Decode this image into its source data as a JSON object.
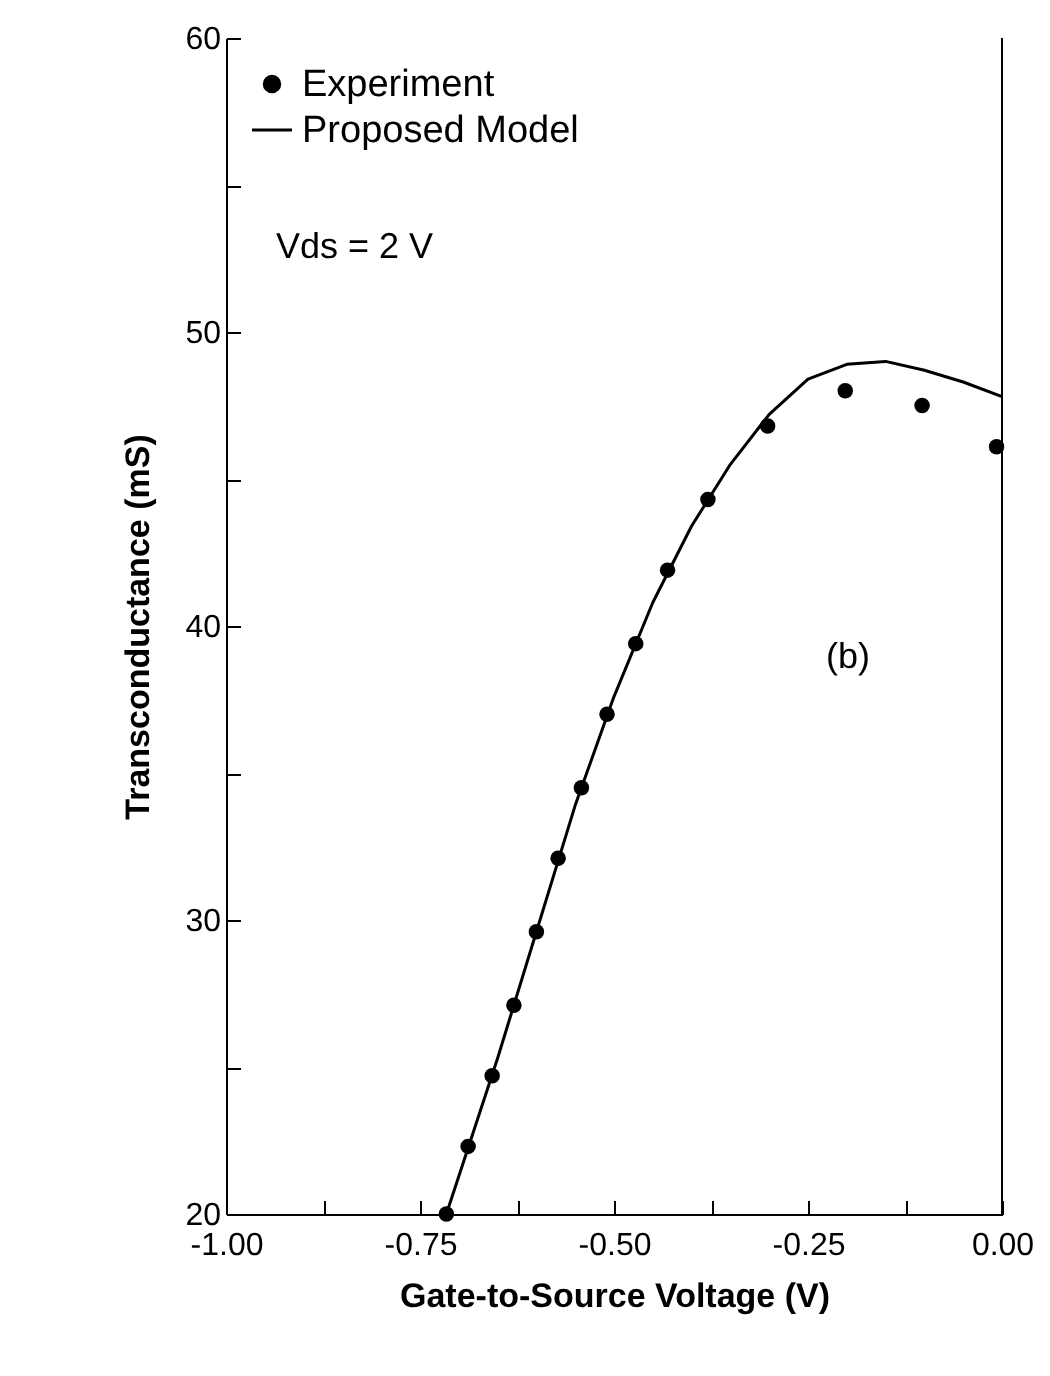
{
  "chart_data": {
    "type": "scatter",
    "xlabel": "Gate-to-Source Voltage (V)",
    "ylabel": "Transconductance (mS)",
    "xlim": [
      -1,
      0
    ],
    "ylim": [
      20,
      60
    ],
    "xticks": [
      {
        "value": -1,
        "label": "-1.00"
      },
      {
        "value": -0.875,
        "label": null
      },
      {
        "value": -0.75,
        "label": "-0.75"
      },
      {
        "value": -0.625,
        "label": null
      },
      {
        "value": -0.5,
        "label": "-0.50"
      },
      {
        "value": -0.375,
        "label": null
      },
      {
        "value": -0.25,
        "label": "-0.25"
      },
      {
        "value": -0.125,
        "label": null
      },
      {
        "value": 0,
        "label": "0.00"
      }
    ],
    "yticks": [
      20,
      {
        "value": 25,
        "label": null
      },
      30,
      {
        "value": 35,
        "label": null
      },
      40,
      {
        "value": 45,
        "label": null
      },
      50,
      {
        "value": 55,
        "label": null
      },
      60
    ],
    "legend": "top left",
    "grid": false,
    "annotations": [
      "Vds = 2 V",
      "(b)"
    ],
    "series": [
      {
        "name": "Experiment",
        "marker": "circle",
        "color": "#000000",
        "x": [
          -0.716,
          -0.688,
          -0.657,
          -0.629,
          -0.6,
          -0.572,
          -0.542,
          -0.509,
          -0.472,
          -0.431,
          -0.379,
          -0.302,
          -0.202,
          -0.103,
          -0.007
        ],
        "values": [
          20.0,
          22.3,
          24.7,
          27.1,
          29.6,
          32.1,
          34.5,
          37.0,
          39.4,
          41.9,
          44.3,
          46.8,
          48.0,
          47.5,
          46.1
        ]
      },
      {
        "name": "Proposed Model",
        "type": "line",
        "line_style": "solid",
        "color": "#000000",
        "x": [
          -0.716,
          -0.65,
          -0.6,
          -0.55,
          -0.5,
          -0.45,
          -0.4,
          -0.35,
          -0.3,
          -0.25,
          -0.2,
          -0.15,
          -0.1,
          -0.05,
          0
        ],
        "values": [
          20,
          25.3,
          29.6,
          33.9,
          37.6,
          40.8,
          43.4,
          45.5,
          47.2,
          48.4,
          48.9,
          49.0,
          48.7,
          48.3,
          47.8
        ]
      }
    ]
  }
}
